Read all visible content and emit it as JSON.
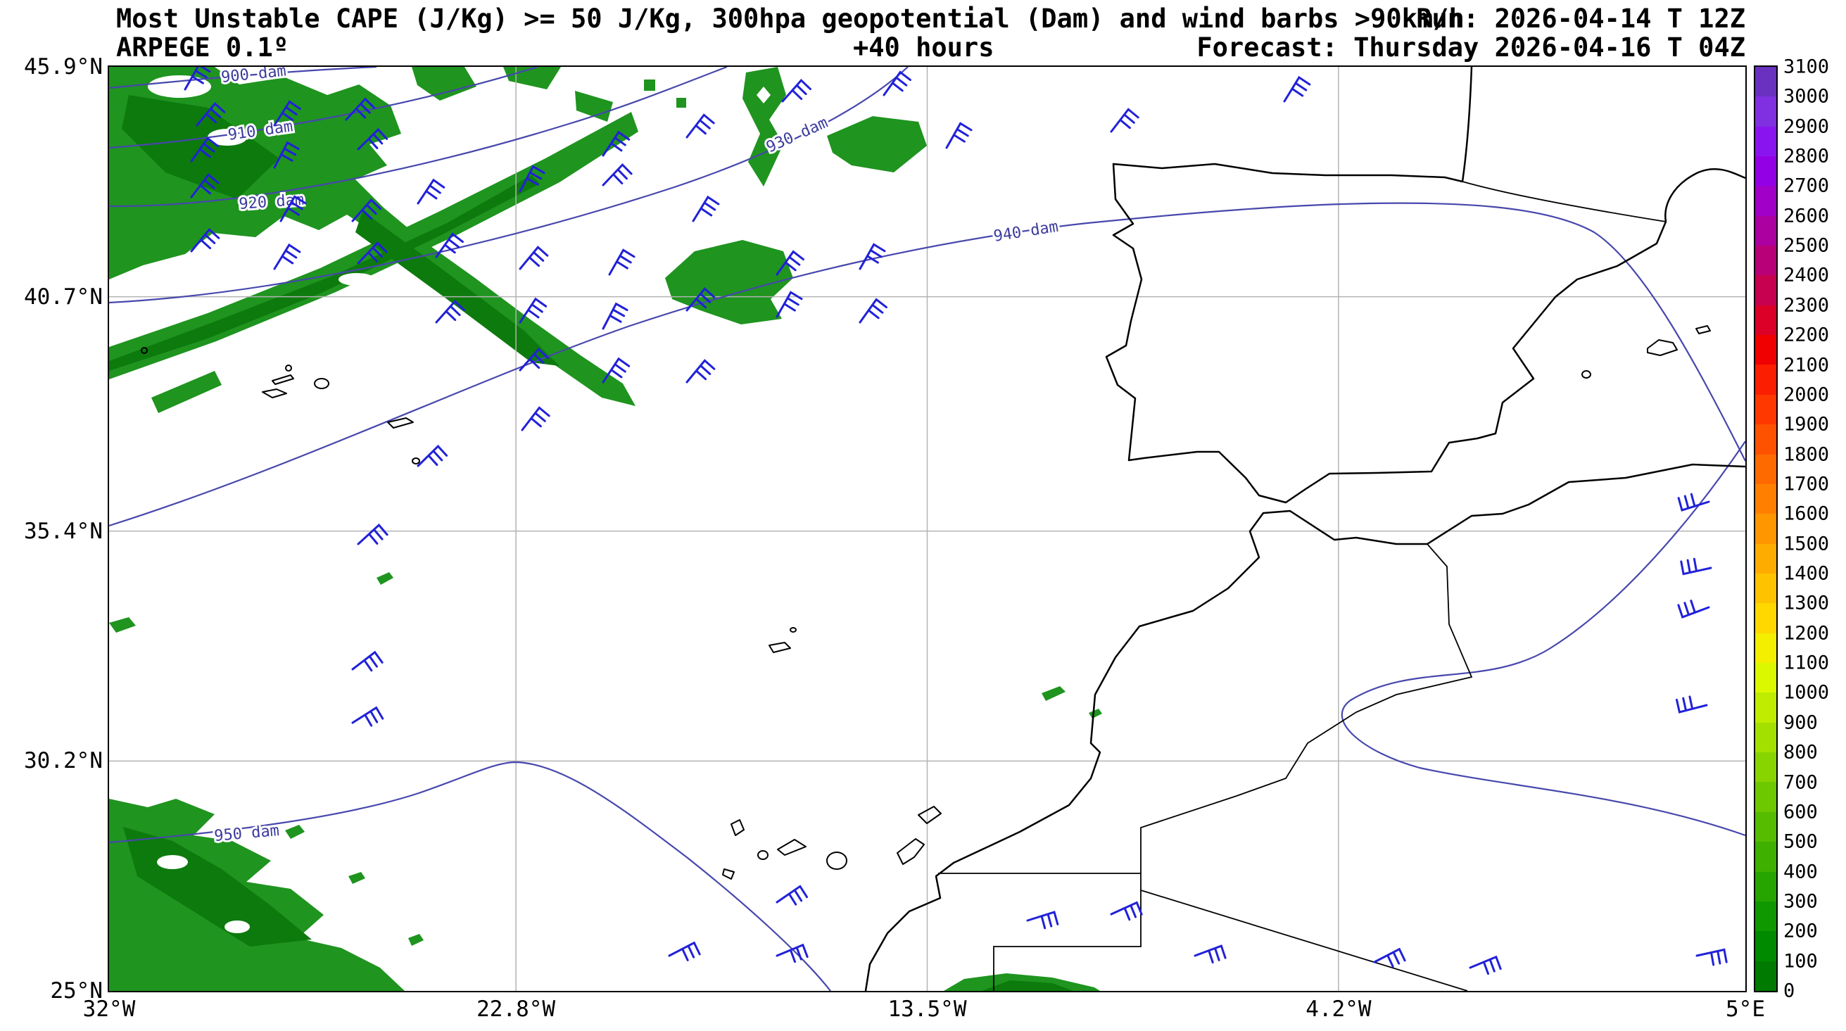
{
  "header": {
    "title": "Most Unstable CAPE (J/Kg) >= 50 J/Kg, 300hpa geopotential (Dam) and wind barbs >90km/h",
    "run": "Run: 2026-04-14 T 12Z",
    "model": "ARPEGE 0.1º",
    "lead": "+40 hours",
    "valid": "Forecast: Thursday 2026-04-16 T 04Z"
  },
  "chart_data": {
    "type": "heatmap",
    "title": "Most Unstable CAPE (J/Kg) >= 50 J/Kg, 300hpa geopotential (Dam) and wind barbs >90km/h",
    "model_run": "ARPEGE 0.1º — Run: 2026-04-14 T 12Z",
    "forecast_lead": "+40 hours",
    "valid_time": "Thursday 2026-04-16 T 04Z",
    "lon_range": [
      -32,
      5
    ],
    "lat_range": [
      25,
      45.9
    ],
    "x_ticks": [
      {
        "label": "32°W",
        "lon": -32
      },
      {
        "label": "22.8°W",
        "lon": -22.8
      },
      {
        "label": "13.5°W",
        "lon": -13.5
      },
      {
        "label": "4.2°W",
        "lon": -4.2
      },
      {
        "label": "5°E",
        "lon": 5
      }
    ],
    "y_ticks": [
      {
        "label": "45.9°N",
        "lat": 45.9
      },
      {
        "label": "40.7°N",
        "lat": 40.7
      },
      {
        "label": "35.4°N",
        "lat": 35.4
      },
      {
        "label": "30.2°N",
        "lat": 30.2
      },
      {
        "label": "25°N",
        "lat": 25
      }
    ],
    "grid": true,
    "colorbar": {
      "unit": "J/Kg",
      "min": 0,
      "max": 3100,
      "step": 100,
      "colors_bottom_to_top": [
        "#007a00",
        "#008a00",
        "#0f9800",
        "#26a400",
        "#3db000",
        "#55bc00",
        "#6ec800",
        "#88d400",
        "#a3e000",
        "#bfec00",
        "#dcf800",
        "#f4ee00",
        "#ffd800",
        "#ffc200",
        "#ffac00",
        "#ff9600",
        "#ff8000",
        "#ff6a00",
        "#ff5200",
        "#ff3800",
        "#fb1e00",
        "#f00000",
        "#dc0028",
        "#c80050",
        "#b80078",
        "#ac00a0",
        "#a000c8",
        "#9400e6",
        "#8a14f0",
        "#8030e0",
        "#6a30c0"
      ]
    },
    "cape_fill": {
      "threshold": ">= 50 J/Kg",
      "color": "#1f941f",
      "core_color": "#0d7a0d"
    },
    "contours": {
      "field": "300hpa geopotential",
      "unit": "Dam",
      "color": "#4747ad",
      "label_color": "#3b3b9d",
      "labels": [
        {
          "text": "900 dam",
          "x": 160,
          "y": 22,
          "rot": -6
        },
        {
          "text": "910 dam",
          "x": 170,
          "y": 104,
          "rot": -8
        },
        {
          "text": "920 dam",
          "x": 185,
          "y": 202,
          "rot": -4
        },
        {
          "text": "930 dam",
          "x": 938,
          "y": 122,
          "rot": -24
        },
        {
          "text": "940 dam",
          "x": 1258,
          "y": 248,
          "rot": -9
        },
        {
          "text": "950 dam",
          "x": 150,
          "y": 1100,
          "rot": -5
        }
      ]
    },
    "wind_barbs": {
      "threshold": ">90 km/h",
      "color": "#2121d9",
      "positions": [
        [
          108,
          32,
          12
        ],
        [
          125,
          83,
          22
        ],
        [
          235,
          83,
          15
        ],
        [
          337,
          75,
          25
        ],
        [
          117,
          134,
          18
        ],
        [
          235,
          143,
          10
        ],
        [
          354,
          117,
          28
        ],
        [
          117,
          185,
          20
        ],
        [
          244,
          219,
          12
        ],
        [
          346,
          219,
          24
        ],
        [
          439,
          194,
          16
        ],
        [
          117,
          262,
          22
        ],
        [
          235,
          287,
          14
        ],
        [
          354,
          279,
          26
        ],
        [
          465,
          270,
          18
        ],
        [
          584,
          177,
          10
        ],
        [
          584,
          287,
          22
        ],
        [
          702,
          126,
          16
        ],
        [
          702,
          168,
          26
        ],
        [
          711,
          295,
          12
        ],
        [
          821,
          100,
          20
        ],
        [
          830,
          219,
          14
        ],
        [
          465,
          363,
          24
        ],
        [
          584,
          363,
          16
        ],
        [
          702,
          372,
          10
        ],
        [
          821,
          346,
          22
        ],
        [
          949,
          295,
          18
        ],
        [
          1067,
          287,
          12
        ],
        [
          1424,
          92,
          20
        ],
        [
          1670,
          49,
          14
        ],
        [
          957,
          49,
          24
        ],
        [
          1101,
          40,
          18
        ],
        [
          1190,
          115,
          12
        ],
        [
          354,
          678,
          30
        ],
        [
          702,
          448,
          16
        ],
        [
          821,
          448,
          22
        ],
        [
          949,
          355,
          12
        ],
        [
          1067,
          363,
          18
        ],
        [
          584,
          431,
          24
        ],
        [
          439,
          567,
          28
        ],
        [
          587,
          516,
          20
        ],
        [
          346,
          856,
          35
        ],
        [
          346,
          932,
          40
        ],
        [
          796,
          1263,
          45
        ],
        [
          949,
          1187,
          38
        ],
        [
          949,
          1263,
          50
        ],
        [
          1305,
          1213,
          55
        ],
        [
          1424,
          1204,
          48
        ],
        [
          1543,
          1263,
          52
        ],
        [
          1798,
          1272,
          45
        ],
        [
          1934,
          1280,
          50
        ],
        [
          2256,
          1263,
          60
        ],
        [
          2273,
          618,
          -125
        ],
        [
          2276,
          712,
          -120
        ],
        [
          2273,
          768,
          -128
        ],
        [
          2270,
          907,
          -122
        ]
      ]
    }
  }
}
